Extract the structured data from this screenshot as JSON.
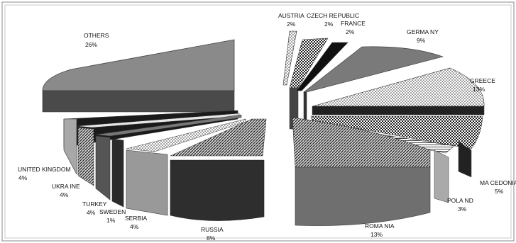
{
  "chart_data": {
    "type": "pie",
    "title": "",
    "style": "3d-exploded",
    "slices": [
      {
        "label": "AUSTRIA",
        "value": 2,
        "value_label": "2%",
        "fill": "#b8b8b8",
        "pattern": "dots"
      },
      {
        "label": "CZECH REPUBLIC",
        "value": 2,
        "value_label": "2%",
        "fill": "#d8d8d8",
        "pattern": "checker"
      },
      {
        "label": "FRANCE",
        "value": 2,
        "value_label": "2%",
        "fill": "#111111",
        "pattern": "solid"
      },
      {
        "label": "GERMANY",
        "value": 9,
        "value_label": "9%",
        "fill": "#777777",
        "pattern": "solid"
      },
      {
        "label": "GREECE",
        "value": 13,
        "value_label": "13%",
        "fill": "#f4f4f4",
        "pattern": "dots"
      },
      {
        "label": "MACEDONIA",
        "value": 5,
        "value_label": "5%",
        "fill": "#2a2a2a",
        "pattern": "checker"
      },
      {
        "label": "POLAND",
        "value": 3,
        "value_label": "3%",
        "fill": "#e8e8e8",
        "pattern": "hlines"
      },
      {
        "label": "ROMANIA",
        "value": 13,
        "value_label": "13%",
        "fill": "#6f6f6f",
        "pattern": "solid"
      },
      {
        "label": "RUSSIA",
        "value": 8,
        "value_label": "8%",
        "fill": "#2e2e2e",
        "pattern": "diagonal"
      },
      {
        "label": "SERBIA",
        "value": 4,
        "value_label": "4%",
        "fill": "#999999",
        "pattern": "solid"
      },
      {
        "label": "SWEDEN",
        "value": 1,
        "value_label": "1%",
        "fill": "#f2f2f2",
        "pattern": "dots"
      },
      {
        "label": "TURKEY",
        "value": 4,
        "value_label": "4%",
        "fill": "#1c1c1c",
        "pattern": "solid"
      },
      {
        "label": "UKRAINE",
        "value": 4,
        "value_label": "4%",
        "fill": "#5a5a5a",
        "pattern": "diagonal"
      },
      {
        "label": "UNITED KINGDOM",
        "value": 4,
        "value_label": "4%",
        "fill": "#a8a8a8",
        "pattern": "solid"
      },
      {
        "label": "OTHERS",
        "value": 26,
        "value_label": "26%",
        "fill": "#8a8a8a",
        "pattern": "solid"
      }
    ]
  },
  "labels_text": {
    "austria": "AUSTRIA",
    "czech": "CZECH REPUBLIC",
    "france": "FRANCE",
    "germany": "GERMA NY",
    "greece": "GREECE",
    "macedonia": "MA CEDONIA",
    "poland": "POLA ND",
    "romania": "ROMA NIA",
    "russia": "RUSSIA",
    "serbia": "SERBIA",
    "sweden": "SWEDEN",
    "turkey": "TURKEY",
    "ukraine": "UKRA INE",
    "uk": "UNITED KINGDOM",
    "others": "OTHERS"
  }
}
